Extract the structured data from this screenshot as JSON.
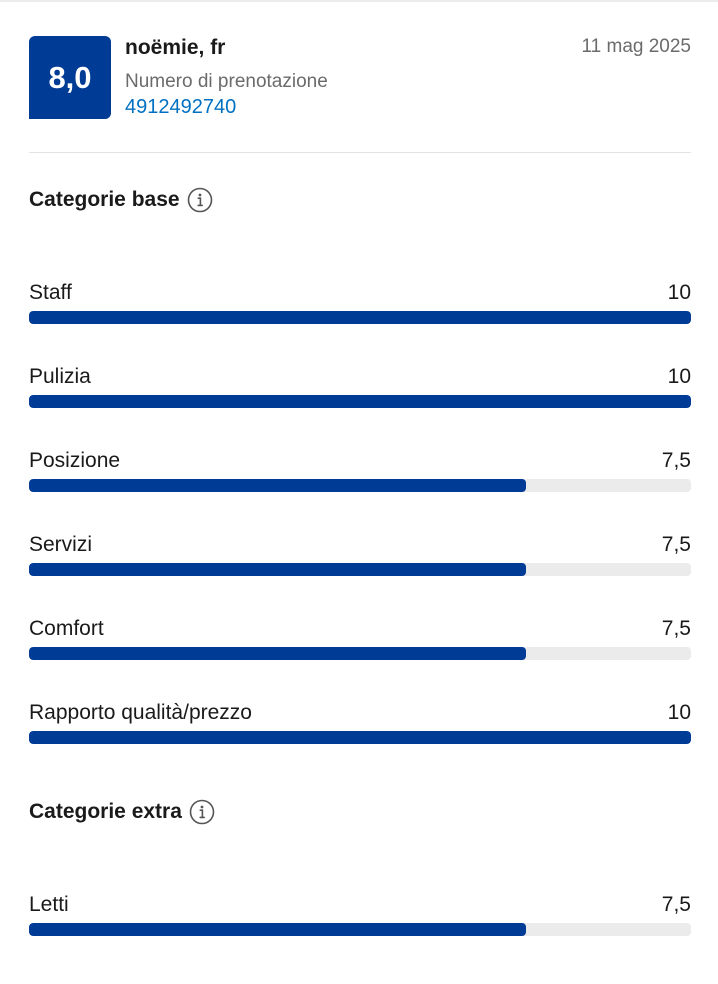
{
  "review": {
    "score": "8,0",
    "reviewer": "noëmie, fr",
    "booking_label": "Numero di prenotazione",
    "booking_number": "4912492740",
    "date": "11 mag 2025"
  },
  "base_section": {
    "title": "Categorie base",
    "icon": "info-icon",
    "items": [
      {
        "label": "Staff",
        "value": "10",
        "fraction": 1.0
      },
      {
        "label": "Pulizia",
        "value": "10",
        "fraction": 1.0
      },
      {
        "label": "Posizione",
        "value": "7,5",
        "fraction": 0.75
      },
      {
        "label": "Servizi",
        "value": "7,5",
        "fraction": 0.75
      },
      {
        "label": "Comfort",
        "value": "7,5",
        "fraction": 0.75
      },
      {
        "label": "Rapporto qualità/prezzo",
        "value": "10",
        "fraction": 1.0
      }
    ]
  },
  "extra_section": {
    "title": "Categorie extra",
    "icon": "info-icon",
    "items": [
      {
        "label": "Letti",
        "value": "7,5",
        "fraction": 0.75
      }
    ]
  },
  "colors": {
    "brand": "#003b95",
    "link": "#0071c2",
    "track": "#ebebeb"
  }
}
